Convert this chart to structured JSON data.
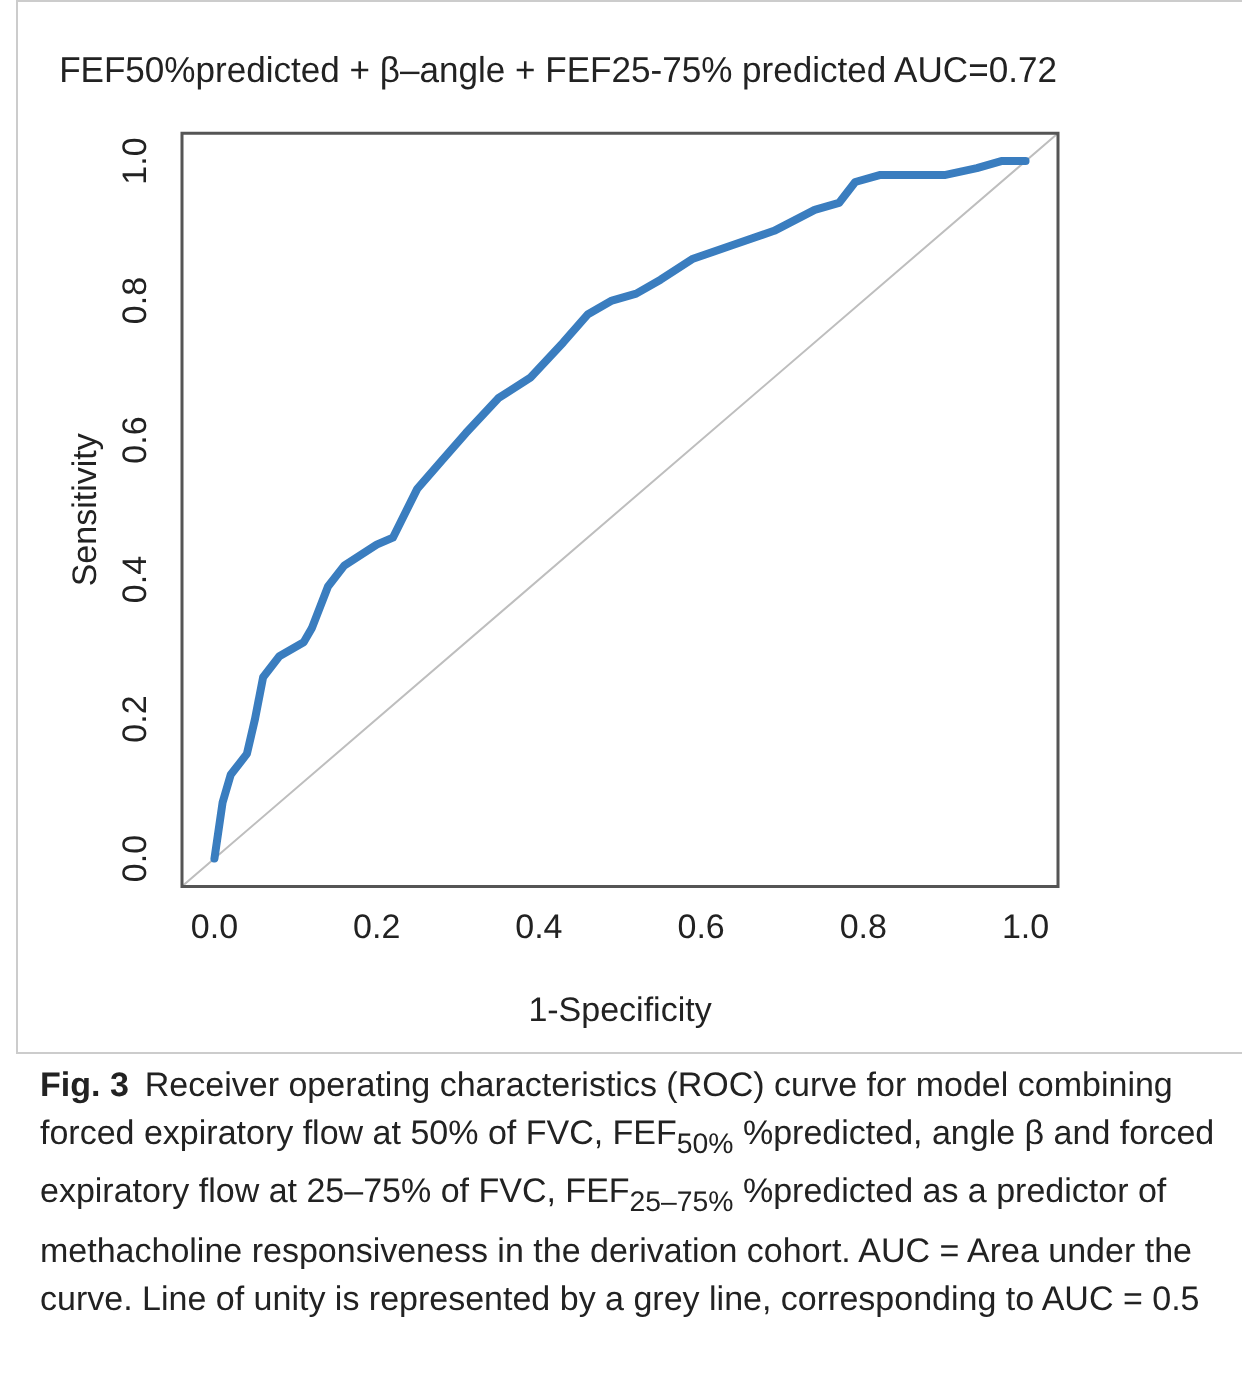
{
  "chart_data": {
    "type": "line",
    "title": "FEF50%predicted + β–angle + FEF25-75% predicted AUC=0.72",
    "xlabel": "1-Specificity",
    "ylabel": "Sensitivity",
    "xlim": [
      -0.04,
      1.04
    ],
    "ylim": [
      -0.04,
      1.04
    ],
    "xticks": [
      {
        "value": 0,
        "label": "0.0"
      },
      0.2,
      0.4,
      0.6,
      0.8,
      {
        "value": 1,
        "label": "1.0"
      }
    ],
    "yticks": [
      {
        "value": 0,
        "label": "0.0"
      },
      0.2,
      0.4,
      0.6,
      0.8,
      {
        "value": 1,
        "label": "1.0"
      }
    ],
    "grid": false,
    "legend": false,
    "marker": "none",
    "line_style": "solid",
    "series": [
      {
        "type": "line",
        "color": "#bebebe",
        "x": [
          -0.04,
          1.04
        ],
        "values": [
          -0.04,
          1.04
        ]
      },
      {
        "color": "#3a7dbf",
        "x": [
          0.0,
          0.01,
          0.02,
          0.04,
          0.05,
          0.06,
          0.08,
          0.11,
          0.12,
          0.14,
          0.16,
          0.2,
          0.22,
          0.25,
          0.28,
          0.31,
          0.35,
          0.39,
          0.43,
          0.46,
          0.49,
          0.52,
          0.55,
          0.59,
          0.64,
          0.69,
          0.74,
          0.77,
          0.79,
          0.82,
          0.9,
          0.94,
          0.97,
          1.0
        ],
        "values": [
          0.0,
          0.08,
          0.12,
          0.15,
          0.2,
          0.26,
          0.29,
          0.31,
          0.33,
          0.39,
          0.42,
          0.45,
          0.46,
          0.53,
          0.57,
          0.61,
          0.66,
          0.69,
          0.74,
          0.78,
          0.8,
          0.81,
          0.83,
          0.86,
          0.88,
          0.9,
          0.93,
          0.94,
          0.97,
          0.98,
          0.98,
          0.99,
          1.0,
          1.0
        ]
      }
    ],
    "annotations": [
      "Fig. 3",
      "Receiver operating characteristics (ROC) curve for model combining forced expiratory flow at 50% of FVC, FEF$_{50%}$ %predicted, angle β and forced expiratory flow at 25–75% of FVC, FEF$_{25–75%}$ %predicted as a predictor of methacholine responsiveness in the derivation cohort. AUC = Area under the curve. Line of unity is represented by a grey line, corresponding to AUC = 0.5"
    ]
  }
}
